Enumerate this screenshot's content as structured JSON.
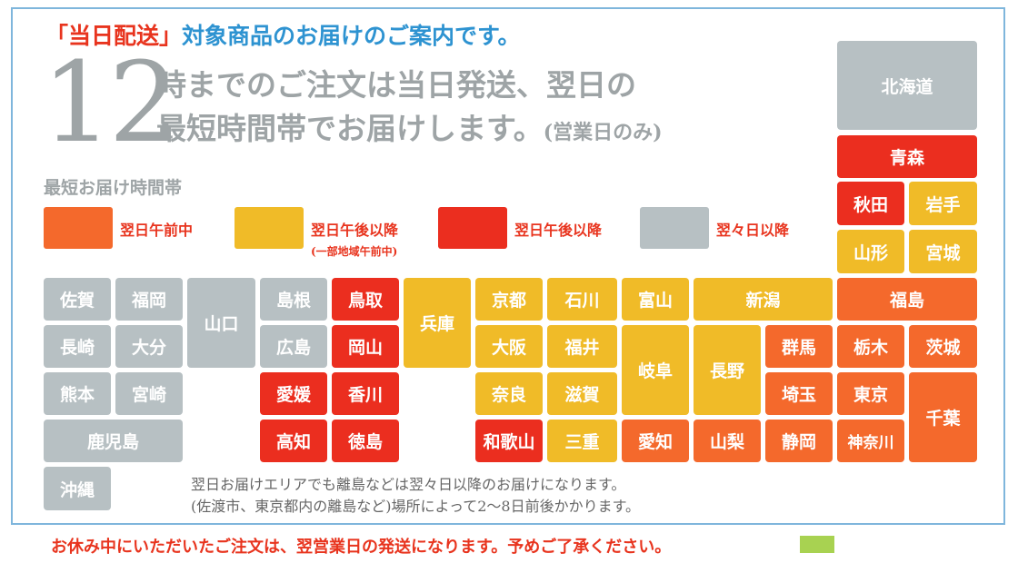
{
  "header": {
    "headline_bracket_open": "「",
    "headline_highlight": "当日配送",
    "headline_bracket_close": "」",
    "headline_rest": "対象商品のお届けのご案内です。",
    "big_number": "12",
    "line1": "時までのご注文は当日発送、翌日の",
    "line2": "最短時間帯でお届けします。",
    "line2_note": "(営業日のみ)"
  },
  "legend": {
    "title": "最短お届け時間帯",
    "items": [
      {
        "label": "翌日午前中",
        "color": "#f4692c"
      },
      {
        "label": "翌日午後以降",
        "color": "#f0bb28",
        "note": "(一部地域午前中)"
      },
      {
        "label": "翌日午後以降",
        "color": "#eb2e1f"
      },
      {
        "label": "翌々日以降",
        "color": "#b7c0c3"
      }
    ]
  },
  "prefectures": {
    "hokkaido": "北海道",
    "aomori": "青森",
    "akita": "秋田",
    "iwate": "岩手",
    "yamagata": "山形",
    "miyagi": "宮城",
    "fukushima": "福島",
    "saga": "佐賀",
    "fukuoka": "福岡",
    "nagasaki": "長崎",
    "oita": "大分",
    "kumamoto": "熊本",
    "miyazaki": "宮崎",
    "kagoshima": "鹿児島",
    "okinawa": "沖縄",
    "yamaguchi": "山口",
    "shimane": "島根",
    "tottori": "鳥取",
    "hiroshima": "広島",
    "okayama": "岡山",
    "ehime": "愛媛",
    "kagawa": "香川",
    "kochi": "高知",
    "tokushima": "徳島",
    "hyogo": "兵庫",
    "kyoto": "京都",
    "ishikawa": "石川",
    "osaka": "大阪",
    "fukui": "福井",
    "nara": "奈良",
    "shiga": "滋賀",
    "wakayama": "和歌山",
    "mie": "三重",
    "toyama": "富山",
    "gifu": "岐阜",
    "aichi": "愛知",
    "niigata": "新潟",
    "nagano": "長野",
    "yamanashi": "山梨",
    "gunma": "群馬",
    "saitama": "埼玉",
    "shizuoka": "静岡",
    "tochigi": "栃木",
    "ibaraki": "茨城",
    "tokyo": "東京",
    "chiba": "千葉",
    "kanagawa": "神奈川"
  },
  "notes": {
    "line1": "翌日お届けエリアでも離島などは翌々日以降のお届けになります。",
    "line2": "(佐渡市、東京都内の離島など)場所によって2〜8日前後かかります。"
  },
  "footer": {
    "text": "お休み中にいただいたご注文は、翌営業日の発送になります。予めご了承ください。"
  }
}
